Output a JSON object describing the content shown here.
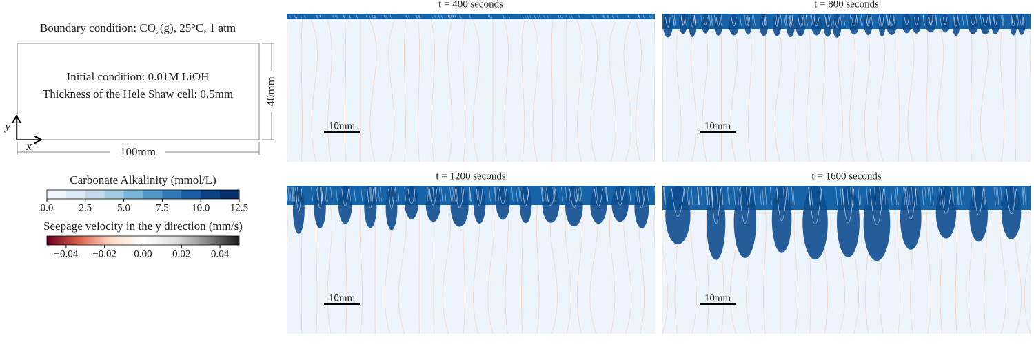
{
  "schematic": {
    "boundary_condition": "Boundary condition: CO₂(g), 25°C, 1 atm",
    "initial_condition": "Initial condition: 0.01M LiOH",
    "thickness": "Thickness of the Hele Shaw cell: 0.5mm",
    "height": "40mm",
    "width": "100mm",
    "y_axis": "y",
    "x_axis": "x"
  },
  "colorbars": [
    {
      "label": "Carbonate Alkalinity (mmol/L)",
      "lim": [
        0,
        12.5
      ],
      "colors": [
        "#f0f6fd",
        "#dbe9f6",
        "#c4dbef",
        "#a2cbe2",
        "#78b5d8",
        "#5098c9",
        "#2f7bba",
        "#175ea4",
        "#0b4386",
        "#08306b"
      ],
      "ticks": [
        {
          "value": 0,
          "label": "0.0"
        },
        {
          "value": 2.5,
          "label": "2.5"
        },
        {
          "value": 5,
          "label": "5.0"
        },
        {
          "value": 7.5,
          "label": "7.5"
        },
        {
          "value": 10,
          "label": "10.0"
        },
        {
          "value": 12.5,
          "label": "12.5"
        }
      ]
    },
    {
      "label": "Seepage velocity in the y direction (mm/s)",
      "lim": [
        -0.05,
        0.05
      ],
      "colors": [
        "#67001f",
        "#d6604d",
        "#fddbc7",
        "#ffffff",
        "#e0e0e0",
        "#878787",
        "#1a1a1a"
      ],
      "ticks": [
        {
          "value": -0.04,
          "label": "−0.04"
        },
        {
          "value": -0.02,
          "label": "−0.02"
        },
        {
          "value": 0,
          "label": "0.00"
        },
        {
          "value": 0.02,
          "label": "0.02"
        },
        {
          "value": 0.04,
          "label": "0.04"
        }
      ]
    }
  ],
  "panels": [
    {
      "title": "t = 400 seconds",
      "scale_bar": "10mm"
    },
    {
      "title": "t = 800 seconds",
      "scale_bar": "10mm"
    },
    {
      "title": "t = 1200 seconds",
      "scale_bar": "10mm"
    },
    {
      "title": "t = 1600 seconds",
      "scale_bar": "10mm"
    }
  ]
}
